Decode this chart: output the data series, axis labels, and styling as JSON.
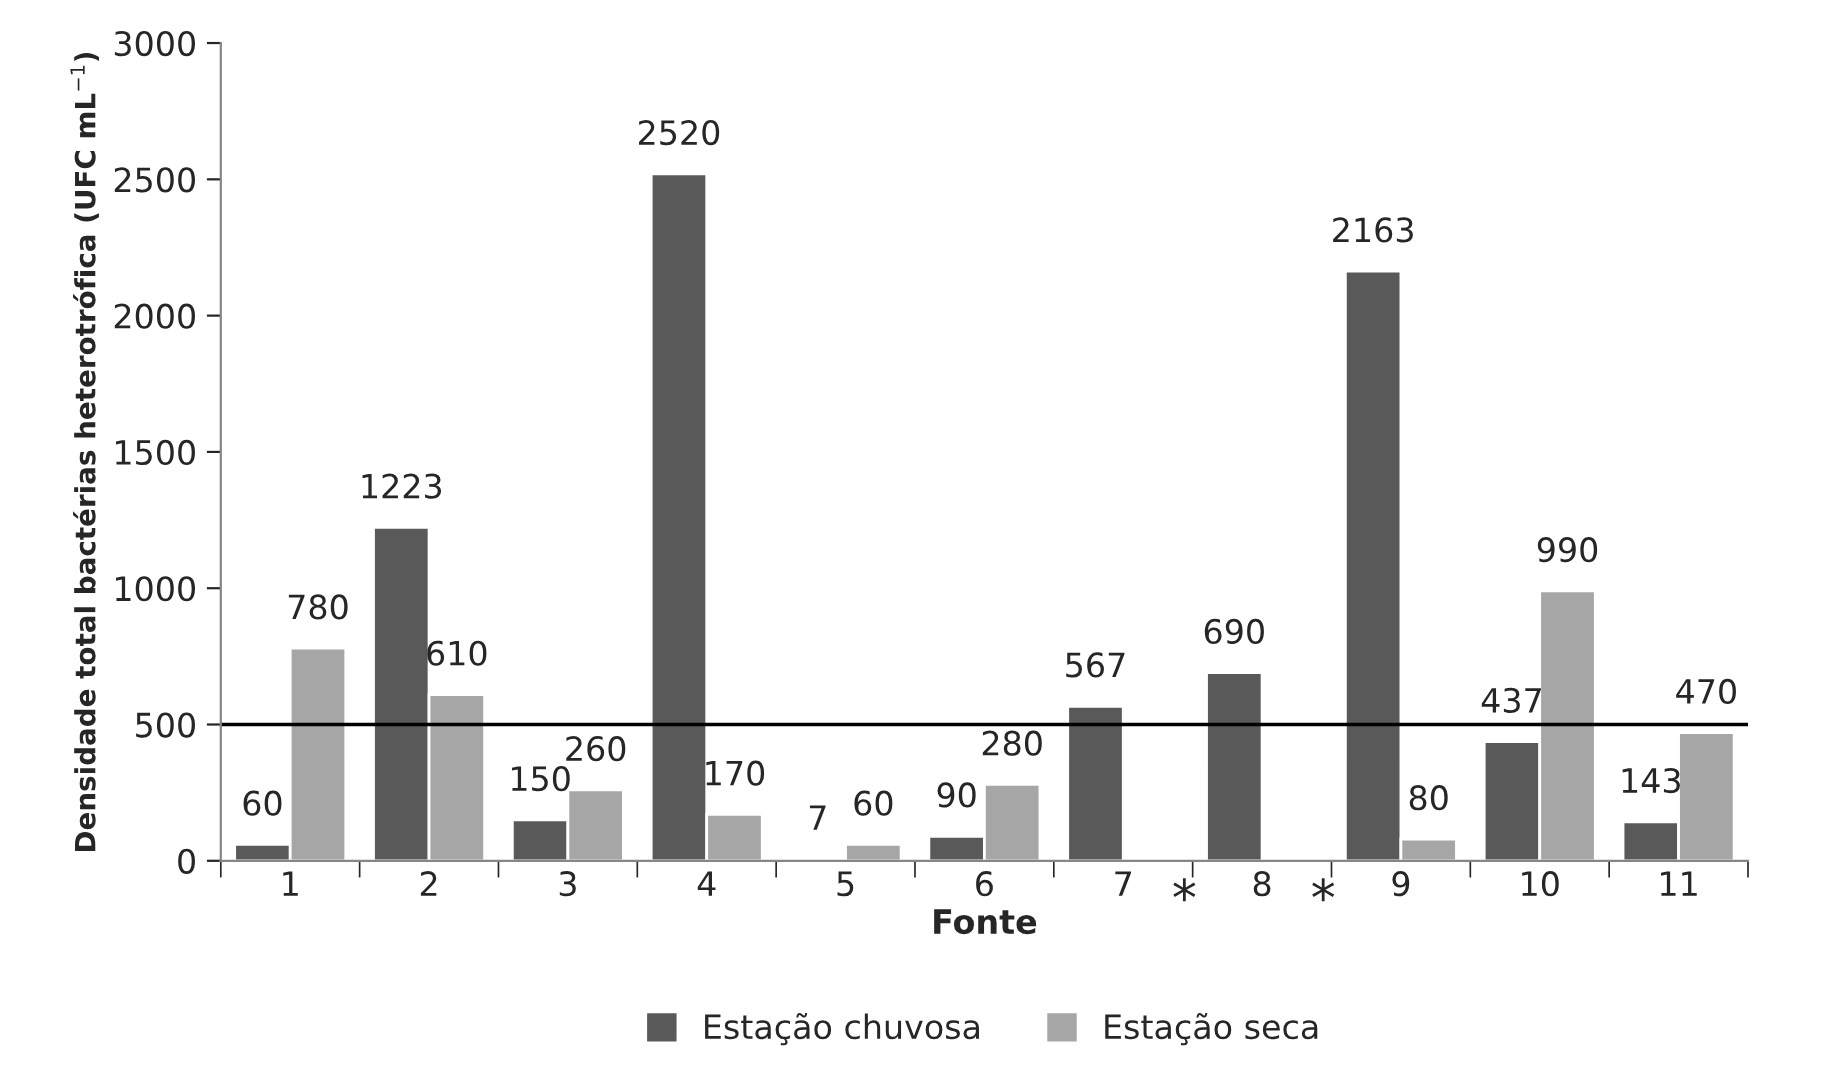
{
  "chart_data": {
    "type": "bar",
    "xlabel": "Fonte",
    "ylabel": "Densidade total bactérias heterotrófica (UFC mL$^{−1}$)",
    "categories": [
      "1",
      "2",
      "3",
      "4",
      "5",
      "6",
      "7",
      "8",
      "9",
      "10",
      "11"
    ],
    "series": [
      {
        "name": "Estação chuvosa",
        "color": "#595959",
        "values": [
          60,
          1223,
          150,
          2520,
          7,
          90,
          567,
          690,
          2163,
          437,
          143
        ]
      },
      {
        "name": "Estação seca",
        "color": "#a6a6a6",
        "values": [
          780,
          610,
          260,
          170,
          60,
          280,
          null,
          null,
          80,
          990,
          470
        ]
      }
    ],
    "ylim": [
      0,
      3000
    ],
    "yticks": [
      0,
      500,
      1000,
      1500,
      2000,
      2500,
      3000
    ],
    "ref_lines": [
      {
        "axis": "y",
        "value": 500,
        "color": "#000000"
      }
    ],
    "annotations": [
      {
        "text": "*",
        "x": "7",
        "y": 0
      },
      {
        "text": "*",
        "x": "8",
        "y": 0
      }
    ],
    "data_labels": true,
    "grid": false,
    "legend": "bottom"
  }
}
